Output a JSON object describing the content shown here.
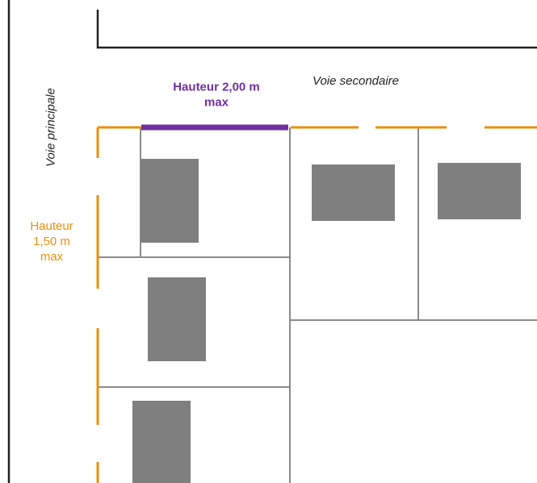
{
  "labels": {
    "main_road": "Voie principale",
    "secondary_road": "Voie secondaire",
    "fence_secondary_line1": "Hauteur 2,00 m",
    "fence_secondary_line2": "max",
    "fence_main_line1": "Hauteur",
    "fence_main_line2": "1,50 m",
    "fence_main_line3": "max"
  },
  "colors": {
    "orange": "#e8900c",
    "purple": "#7030a0",
    "building": "#7f7f7f",
    "plot_border": "#8a8a8a",
    "road_edge": "#222222",
    "text": "#222222"
  }
}
